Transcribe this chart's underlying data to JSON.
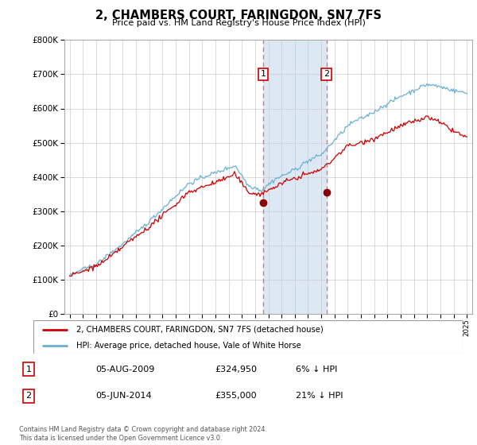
{
  "title": "2, CHAMBERS COURT, FARINGDON, SN7 7FS",
  "subtitle": "Price paid vs. HM Land Registry's House Price Index (HPI)",
  "legend_line1": "2, CHAMBERS COURT, FARINGDON, SN7 7FS (detached house)",
  "legend_line2": "HPI: Average price, detached house, Vale of White Horse",
  "transaction1_label": "1",
  "transaction1_date": "05-AUG-2009",
  "transaction1_price": "£324,950",
  "transaction1_hpi": "6% ↓ HPI",
  "transaction2_label": "2",
  "transaction2_date": "05-JUN-2014",
  "transaction2_price": "£355,000",
  "transaction2_hpi": "21% ↓ HPI",
  "footnote": "Contains HM Land Registry data © Crown copyright and database right 2024.\nThis data is licensed under the Open Government Licence v3.0.",
  "hpi_color": "#6ab0d4",
  "price_color": "#cc0000",
  "marker_color": "#8b0000",
  "highlight_color": "#dce9f5",
  "vline_color": "#e87070",
  "ylim": [
    0,
    800000
  ],
  "yticks": [
    0,
    100000,
    200000,
    300000,
    400000,
    500000,
    600000,
    700000,
    800000
  ],
  "start_year": 1995,
  "end_year": 2025,
  "transaction1_year": 2009.6,
  "transaction2_year": 2014.4,
  "transaction1_price_val": 324950,
  "transaction2_price_val": 355000
}
